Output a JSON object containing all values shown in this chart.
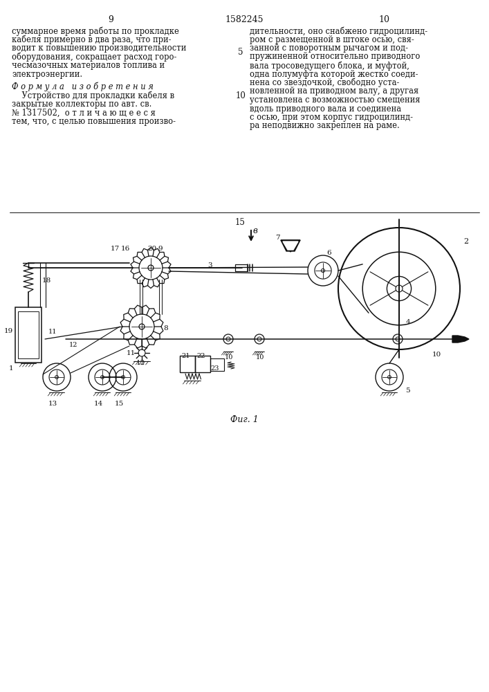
{
  "bg_color": "#f5f5f0",
  "text_color": "#1a1a1a",
  "page_num_left": "9",
  "page_num_right": "10",
  "patent_number": "1582245",
  "left_col_lines": [
    "суммарное время работы по прокладке",
    "кабеля примерно в два раза, что при-",
    "водит к повышению производительности",
    "оборудования, сокращает расход горо-",
    "чесмазочных материалов топлива и",
    "электроэнергии."
  ],
  "formula_header": "Ф о р м у л а   и з о б р е т е н и я",
  "formula_lines": [
    "    Устройство для прокладки кабеля в",
    "закрытые коллекторы по авт. св.",
    "№ 1317502,  о т л и ч а ю щ е е с я",
    "тем, что, с целью повышения произво-"
  ],
  "right_col_lines": [
    "дительности, оно снабжено гидроцилинд-",
    "ром с размещенной в штоке осью, свя-",
    "занной с поворотным рычагом и под-",
    "пружиненной относительно приводного",
    "вала тросоведущего блока, и муфтой,",
    "одна полумуфта которой жестко соеди-",
    "нена со звездочкой, свободно уста-",
    "новленной на приводном валу, а другая",
    "установлена с возможностью смещения",
    "вдоль приводного вала и соединена",
    "с осью, при этом корпус гидроцилинд-",
    "ра неподвижно закреплен на раме."
  ],
  "fig_label": "Фиг. 1",
  "num5": "5",
  "num10_right": "10",
  "num15": "15",
  "arrow_label": "в"
}
